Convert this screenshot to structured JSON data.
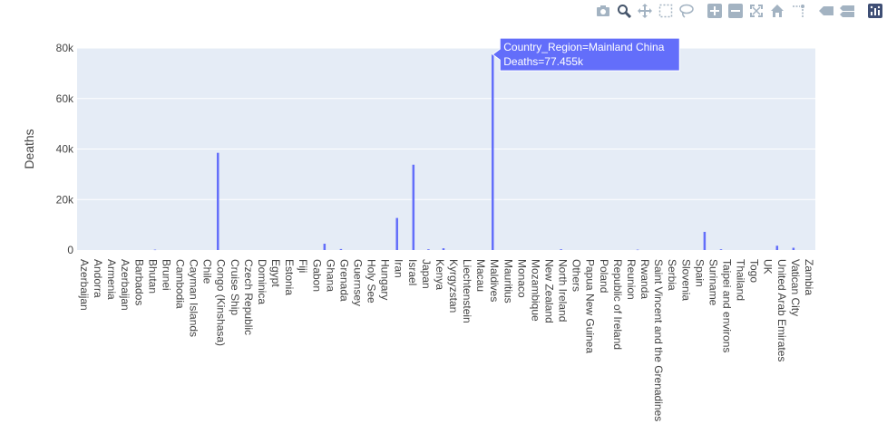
{
  "modebar": {
    "buttons": [
      {
        "icon": "camera-icon",
        "name": "download-png-button"
      },
      {
        "icon": "zoom-icon",
        "name": "zoom-button",
        "active": true
      },
      {
        "icon": "pan-icon",
        "name": "pan-button"
      },
      {
        "icon": "box-select-icon",
        "name": "box-select-button"
      },
      {
        "icon": "lasso-select-icon",
        "name": "lasso-select-button"
      },
      {
        "icon": "zoom-in-icon",
        "name": "zoom-in-button"
      },
      {
        "icon": "zoom-out-icon",
        "name": "zoom-out-button"
      },
      {
        "icon": "autoscale-icon",
        "name": "autoscale-button"
      },
      {
        "icon": "reset-axes-icon",
        "name": "reset-axes-button"
      },
      {
        "icon": "spike-lines-icon",
        "name": "spike-lines-button"
      },
      {
        "icon": "hover-closest-icon",
        "name": "hover-closest-button"
      },
      {
        "icon": "hover-compare-icon",
        "name": "hover-compare-button"
      },
      {
        "icon": "plotly-logo-icon",
        "name": "plotly-logo-link"
      }
    ],
    "colors": {
      "icon": "#a3b3c2",
      "active": "#44546a",
      "logo": "#3f4f75"
    }
  },
  "hover": {
    "line1": "Country_Region=Mainland China",
    "line2": "Deaths=77.455k",
    "country": "Mainland China"
  },
  "colors": {
    "bar": "#636efa",
    "plot_bg": "#e5ecf6",
    "grid": "#ffffff",
    "text": "#444444"
  },
  "chart_data": {
    "type": "bar",
    "xlabel": "",
    "ylabel": "Deaths",
    "ylim": [
      0,
      80000
    ],
    "yticks": [
      0,
      20000,
      40000,
      60000,
      80000
    ],
    "ytick_labels": [
      "0",
      "20k",
      "40k",
      "60k",
      "80k"
    ],
    "grid": true,
    "x_tick_labels": [
      "Azerbaijan",
      "Andorra",
      "Armenia",
      "Azerbaijan",
      "Barbados",
      "Bhutan",
      "Brunei",
      "Cambodia",
      "Cayman Islands",
      "Chile",
      "Congo (Kinshasa)",
      "Cruise Ship",
      "Czech Republic",
      "Dominica",
      "Egypt",
      "Estonia",
      "Fiji",
      "Gabon",
      "Ghana",
      "Grenada",
      "Guernsey",
      "Holy See",
      "Hungary",
      "Iran",
      "Israel",
      "Japan",
      "Kenya",
      "Kyrgyzstan",
      "Liechtenstein",
      "Macau",
      "Maldives",
      "Mauritius",
      "Monaco",
      "Mozambique",
      "New Zealand",
      "North Ireland",
      "Others",
      "Papua New Guinea",
      "Poland",
      "Republic of Ireland",
      "Reunion",
      "Rwanda",
      "Saint Vincent and the Grenadines",
      "Serbia",
      "Slovenia",
      "Spain",
      "Suriname",
      "Taipei and environs",
      "Thailand",
      "Togo",
      "UK",
      "United Arab Emirates",
      "Vatican City",
      "Zambia"
    ],
    "bars": [
      {
        "pos": 9.8,
        "value": 38500
      },
      {
        "pos": 17.6,
        "value": 2500
      },
      {
        "pos": 18.8,
        "value": 400
      },
      {
        "pos": 22.9,
        "value": 12700
      },
      {
        "pos": 24.1,
        "value": 33800
      },
      {
        "pos": 25.2,
        "value": 300
      },
      {
        "pos": 26.3,
        "value": 700
      },
      {
        "pos": 29.9,
        "value": 77455
      },
      {
        "pos": 34.9,
        "value": 300
      },
      {
        "pos": 45.4,
        "value": 7200
      },
      {
        "pos": 46.6,
        "value": 300
      },
      {
        "pos": 50.7,
        "value": 1700
      },
      {
        "pos": 51.9,
        "value": 900
      },
      {
        "pos": 5.2,
        "value": 150
      },
      {
        "pos": 40.5,
        "value": 150
      }
    ]
  }
}
